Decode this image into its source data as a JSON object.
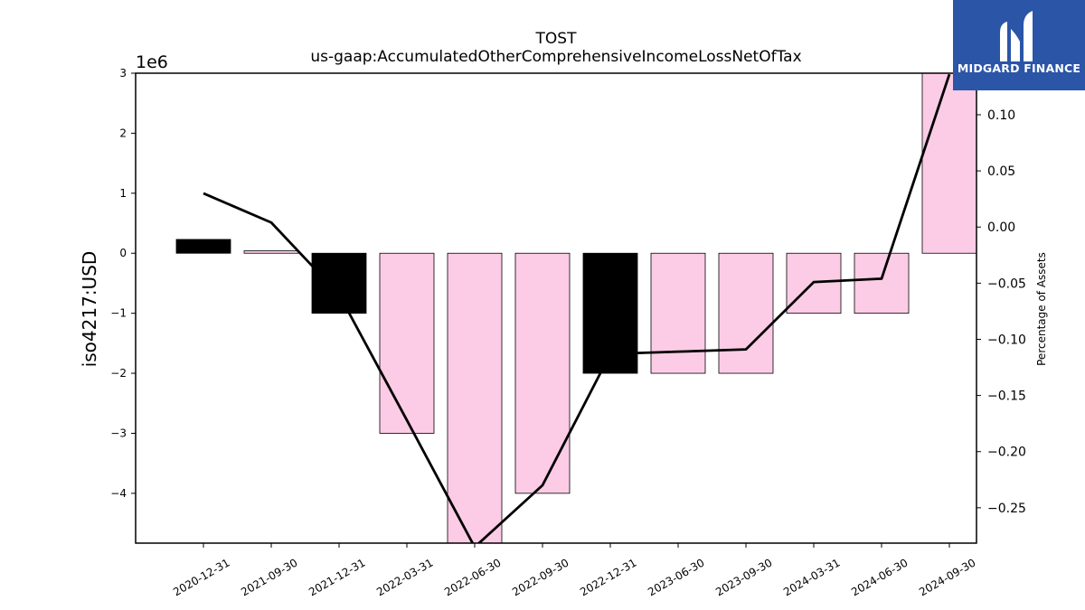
{
  "chart_data": {
    "type": "bar",
    "title": "TOST",
    "subtitle": "us-gaap:AccumulatedOtherComprehensiveIncomeLossNetOfTax",
    "ylabel": "iso4217:USD",
    "y2label": "Percentage of Assets",
    "y_offset_label": "1e6",
    "categories": [
      "2020-12-31",
      "2021-09-30",
      "2021-12-31",
      "2022-03-31",
      "2022-06-30",
      "2022-09-30",
      "2022-12-31",
      "2023-06-30",
      "2023-09-30",
      "2024-03-31",
      "2024-06-30",
      "2024-09-30"
    ],
    "values": [
      230000,
      40000,
      -1000000,
      -3000000,
      -5000000,
      -4000000,
      -2000000,
      -2000000,
      -2000000,
      -1000000,
      -1000000,
      3000000
    ],
    "bar_colors": [
      "#000000",
      "#fccce6",
      "#000000",
      "#fccce6",
      "#fccce6",
      "#fccce6",
      "#000000",
      "#fccce6",
      "#fccce6",
      "#fccce6",
      "#fccce6",
      "#fccce6"
    ],
    "percent_of_assets": [
      0.03,
      0.004,
      -0.06,
      -0.172,
      -0.285,
      -0.23,
      -0.113,
      -0.111,
      -0.109,
      -0.049,
      -0.046,
      0.136
    ],
    "ylim": [
      -4830000,
      3000000
    ],
    "y2lim": [
      -0.2815,
      0.137
    ],
    "yticks": [
      3,
      2,
      1,
      0,
      -1,
      -2,
      -3,
      -4
    ],
    "ytick_labels": [
      "3",
      "2",
      "1",
      "0",
      "−1",
      "−2",
      "−3",
      "−4"
    ],
    "y2ticks": [
      0.1,
      0.05,
      0.0,
      -0.05,
      -0.1,
      -0.15,
      -0.2,
      -0.25
    ],
    "y2tick_labels": [
      "0.10",
      "0.05",
      "0.00",
      "−0.05",
      "−0.10",
      "−0.15",
      "−0.20",
      "−0.25"
    ],
    "line_color": "#000000",
    "grid": false
  },
  "logo": {
    "text": "MIDGARD FINANCE",
    "color": "#2b55a7"
  }
}
